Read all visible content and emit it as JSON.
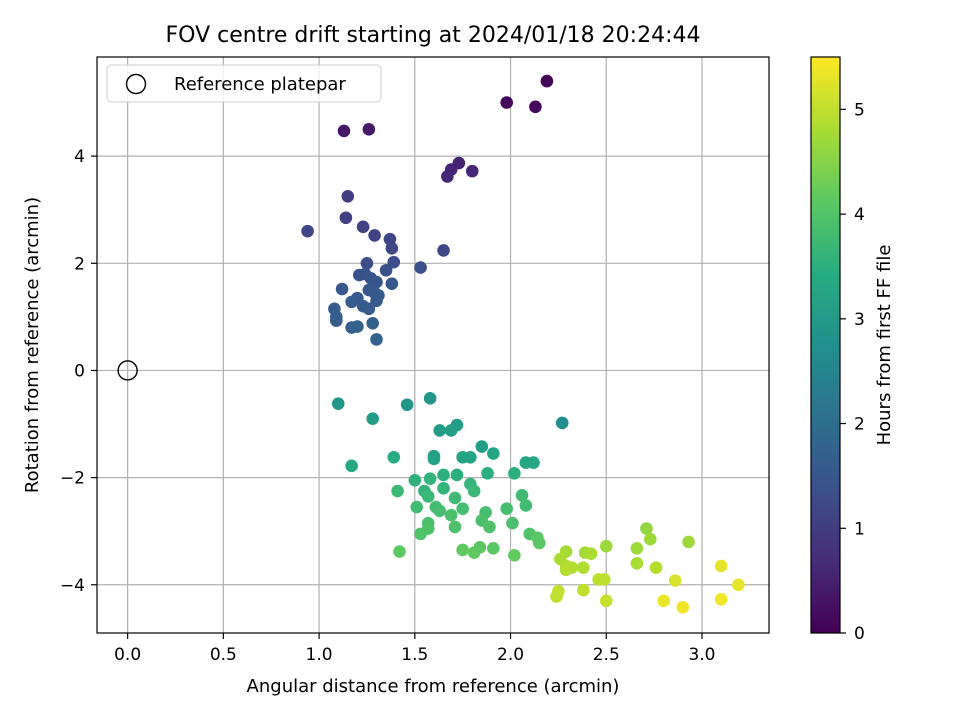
{
  "chart_data": {
    "type": "scatter",
    "title": "FOV centre drift starting at 2024/01/18 20:24:44",
    "xlabel": "Angular distance from reference (arcmin)",
    "ylabel": "Rotation from reference (arcmin)",
    "xlim": [
      -0.16,
      3.35
    ],
    "ylim": [
      -4.9,
      5.85
    ],
    "xticks": [
      "0.0",
      "0.5",
      "1.0",
      "1.5",
      "2.0",
      "2.5",
      "3.0"
    ],
    "xtick_values": [
      0.0,
      0.5,
      1.0,
      1.5,
      2.0,
      2.5,
      3.0
    ],
    "yticks": [
      "−4",
      "−2",
      "0",
      "2",
      "4"
    ],
    "ytick_values": [
      -4,
      -2,
      0,
      2,
      4
    ],
    "grid": true,
    "legend": {
      "position": "top-left",
      "entries": [
        {
          "label": "Reference platepar",
          "marker": "open-circle"
        }
      ]
    },
    "reference_point": {
      "x": 0.0,
      "y": 0.0
    },
    "colorbar": {
      "label": "Hours from first FF file",
      "colormap": "viridis",
      "range": [
        0,
        5.5
      ],
      "ticks": [
        "0",
        "1",
        "2",
        "3",
        "4",
        "5"
      ],
      "tick_values": [
        0,
        1,
        2,
        3,
        4,
        5
      ]
    },
    "points": [
      {
        "x": 2.19,
        "y": 5.4,
        "c": 0.05
      },
      {
        "x": 1.98,
        "y": 5.0,
        "c": 0.08
      },
      {
        "x": 2.13,
        "y": 4.92,
        "c": 0.12
      },
      {
        "x": 1.13,
        "y": 4.47,
        "c": 0.35
      },
      {
        "x": 1.26,
        "y": 4.5,
        "c": 0.38
      },
      {
        "x": 1.73,
        "y": 3.87,
        "c": 0.55
      },
      {
        "x": 1.69,
        "y": 3.75,
        "c": 0.58
      },
      {
        "x": 1.8,
        "y": 3.72,
        "c": 0.6
      },
      {
        "x": 1.67,
        "y": 3.62,
        "c": 0.62
      },
      {
        "x": 1.15,
        "y": 3.25,
        "c": 1.0
      },
      {
        "x": 1.14,
        "y": 2.85,
        "c": 1.05
      },
      {
        "x": 1.23,
        "y": 2.68,
        "c": 1.1
      },
      {
        "x": 1.29,
        "y": 2.52,
        "c": 1.12
      },
      {
        "x": 0.94,
        "y": 2.6,
        "c": 1.15
      },
      {
        "x": 1.37,
        "y": 2.45,
        "c": 1.15
      },
      {
        "x": 1.38,
        "y": 2.28,
        "c": 1.2
      },
      {
        "x": 1.65,
        "y": 2.24,
        "c": 1.2
      },
      {
        "x": 1.25,
        "y": 2.0,
        "c": 1.3
      },
      {
        "x": 1.39,
        "y": 2.02,
        "c": 1.3
      },
      {
        "x": 1.53,
        "y": 1.92,
        "c": 1.35
      },
      {
        "x": 1.35,
        "y": 1.87,
        "c": 1.35
      },
      {
        "x": 1.21,
        "y": 1.78,
        "c": 1.4
      },
      {
        "x": 1.24,
        "y": 1.8,
        "c": 1.4
      },
      {
        "x": 1.27,
        "y": 1.72,
        "c": 1.45
      },
      {
        "x": 1.3,
        "y": 1.65,
        "c": 1.45
      },
      {
        "x": 1.38,
        "y": 1.62,
        "c": 1.5
      },
      {
        "x": 1.12,
        "y": 1.52,
        "c": 1.5
      },
      {
        "x": 1.26,
        "y": 1.5,
        "c": 1.5
      },
      {
        "x": 1.29,
        "y": 1.45,
        "c": 1.55
      },
      {
        "x": 1.31,
        "y": 1.4,
        "c": 1.55
      },
      {
        "x": 1.2,
        "y": 1.35,
        "c": 1.55
      },
      {
        "x": 1.17,
        "y": 1.28,
        "c": 1.6
      },
      {
        "x": 1.3,
        "y": 1.3,
        "c": 1.6
      },
      {
        "x": 1.23,
        "y": 1.2,
        "c": 1.6
      },
      {
        "x": 1.26,
        "y": 1.15,
        "c": 1.6
      },
      {
        "x": 1.08,
        "y": 1.15,
        "c": 1.6
      },
      {
        "x": 1.09,
        "y": 1.0,
        "c": 1.65
      },
      {
        "x": 1.09,
        "y": 0.93,
        "c": 1.65
      },
      {
        "x": 1.28,
        "y": 0.88,
        "c": 1.7
      },
      {
        "x": 1.17,
        "y": 0.8,
        "c": 1.7
      },
      {
        "x": 1.2,
        "y": 0.82,
        "c": 1.7
      },
      {
        "x": 1.3,
        "y": 0.58,
        "c": 1.75
      },
      {
        "x": 2.27,
        "y": -0.98,
        "c": 2.75
      },
      {
        "x": 1.1,
        "y": -0.62,
        "c": 2.9
      },
      {
        "x": 1.46,
        "y": -0.64,
        "c": 2.9
      },
      {
        "x": 1.58,
        "y": -0.52,
        "c": 2.9
      },
      {
        "x": 1.28,
        "y": -0.9,
        "c": 3.0
      },
      {
        "x": 1.72,
        "y": -1.02,
        "c": 3.0
      },
      {
        "x": 1.63,
        "y": -1.12,
        "c": 3.05
      },
      {
        "x": 1.69,
        "y": -1.12,
        "c": 3.05
      },
      {
        "x": 1.85,
        "y": -1.42,
        "c": 3.1
      },
      {
        "x": 1.6,
        "y": -1.6,
        "c": 3.15
      },
      {
        "x": 1.6,
        "y": -1.65,
        "c": 3.15
      },
      {
        "x": 1.75,
        "y": -1.62,
        "c": 3.2
      },
      {
        "x": 1.79,
        "y": -1.62,
        "c": 3.2
      },
      {
        "x": 1.91,
        "y": -1.55,
        "c": 3.2
      },
      {
        "x": 2.08,
        "y": -1.72,
        "c": 3.3
      },
      {
        "x": 2.12,
        "y": -1.72,
        "c": 3.3
      },
      {
        "x": 1.17,
        "y": -1.78,
        "c": 3.3
      },
      {
        "x": 1.39,
        "y": -1.62,
        "c": 3.4
      },
      {
        "x": 1.65,
        "y": -1.95,
        "c": 3.5
      },
      {
        "x": 1.72,
        "y": -1.95,
        "c": 3.5
      },
      {
        "x": 1.88,
        "y": -1.92,
        "c": 3.5
      },
      {
        "x": 2.02,
        "y": -1.92,
        "c": 3.5
      },
      {
        "x": 1.5,
        "y": -2.05,
        "c": 3.55
      },
      {
        "x": 1.58,
        "y": -2.02,
        "c": 3.6
      },
      {
        "x": 1.79,
        "y": -2.12,
        "c": 3.6
      },
      {
        "x": 1.65,
        "y": -2.2,
        "c": 3.6
      },
      {
        "x": 1.55,
        "y": -2.25,
        "c": 3.6
      },
      {
        "x": 1.41,
        "y": -2.25,
        "c": 3.7
      },
      {
        "x": 1.81,
        "y": -2.25,
        "c": 3.7
      },
      {
        "x": 1.57,
        "y": -2.35,
        "c": 3.7
      },
      {
        "x": 2.06,
        "y": -2.33,
        "c": 3.75
      },
      {
        "x": 1.71,
        "y": -2.38,
        "c": 3.75
      },
      {
        "x": 2.08,
        "y": -2.52,
        "c": 3.8
      },
      {
        "x": 1.51,
        "y": -2.55,
        "c": 3.8
      },
      {
        "x": 1.61,
        "y": -2.55,
        "c": 3.8
      },
      {
        "x": 1.75,
        "y": -2.58,
        "c": 3.85
      },
      {
        "x": 1.98,
        "y": -2.58,
        "c": 3.85
      },
      {
        "x": 1.63,
        "y": -2.62,
        "c": 3.85
      },
      {
        "x": 1.87,
        "y": -2.65,
        "c": 3.85
      },
      {
        "x": 1.69,
        "y": -2.7,
        "c": 3.9
      },
      {
        "x": 1.85,
        "y": -2.8,
        "c": 3.9
      },
      {
        "x": 1.57,
        "y": -2.85,
        "c": 3.9
      },
      {
        "x": 2.01,
        "y": -2.85,
        "c": 3.9
      },
      {
        "x": 1.71,
        "y": -2.92,
        "c": 3.95
      },
      {
        "x": 1.57,
        "y": -2.95,
        "c": 3.95
      },
      {
        "x": 1.89,
        "y": -2.92,
        "c": 3.95
      },
      {
        "x": 1.53,
        "y": -3.05,
        "c": 4.0
      },
      {
        "x": 2.1,
        "y": -3.05,
        "c": 4.0
      },
      {
        "x": 2.14,
        "y": -3.12,
        "c": 4.1
      },
      {
        "x": 2.15,
        "y": -3.22,
        "c": 4.1
      },
      {
        "x": 1.84,
        "y": -3.3,
        "c": 4.1
      },
      {
        "x": 1.91,
        "y": -3.32,
        "c": 4.1
      },
      {
        "x": 1.75,
        "y": -3.35,
        "c": 4.15
      },
      {
        "x": 1.81,
        "y": -3.4,
        "c": 4.15
      },
      {
        "x": 1.42,
        "y": -3.38,
        "c": 4.15
      },
      {
        "x": 2.02,
        "y": -3.45,
        "c": 4.2
      },
      {
        "x": 2.71,
        "y": -2.95,
        "c": 4.6
      },
      {
        "x": 2.73,
        "y": -3.15,
        "c": 4.7
      },
      {
        "x": 2.93,
        "y": -3.2,
        "c": 4.7
      },
      {
        "x": 2.5,
        "y": -3.28,
        "c": 4.7
      },
      {
        "x": 2.66,
        "y": -3.32,
        "c": 4.7
      },
      {
        "x": 2.29,
        "y": -3.38,
        "c": 4.75
      },
      {
        "x": 2.39,
        "y": -3.4,
        "c": 4.75
      },
      {
        "x": 2.42,
        "y": -3.42,
        "c": 4.8
      },
      {
        "x": 2.26,
        "y": -3.52,
        "c": 4.8
      },
      {
        "x": 2.66,
        "y": -3.6,
        "c": 4.8
      },
      {
        "x": 2.29,
        "y": -3.65,
        "c": 4.85
      },
      {
        "x": 2.32,
        "y": -3.68,
        "c": 4.85
      },
      {
        "x": 2.38,
        "y": -3.68,
        "c": 4.85
      },
      {
        "x": 2.76,
        "y": -3.68,
        "c": 4.9
      },
      {
        "x": 2.29,
        "y": -3.72,
        "c": 4.9
      },
      {
        "x": 2.46,
        "y": -3.9,
        "c": 4.95
      },
      {
        "x": 2.49,
        "y": -3.9,
        "c": 4.95
      },
      {
        "x": 2.38,
        "y": -4.1,
        "c": 5.0
      },
      {
        "x": 2.25,
        "y": -4.12,
        "c": 5.0
      },
      {
        "x": 2.24,
        "y": -4.22,
        "c": 5.0
      },
      {
        "x": 2.5,
        "y": -4.3,
        "c": 5.05
      },
      {
        "x": 2.86,
        "y": -3.92,
        "c": 5.2
      },
      {
        "x": 3.19,
        "y": -4.0,
        "c": 5.3
      },
      {
        "x": 3.1,
        "y": -3.65,
        "c": 5.3
      },
      {
        "x": 2.8,
        "y": -4.3,
        "c": 5.35
      },
      {
        "x": 2.9,
        "y": -4.42,
        "c": 5.4
      },
      {
        "x": 3.1,
        "y": -4.27,
        "c": 5.4
      }
    ]
  }
}
